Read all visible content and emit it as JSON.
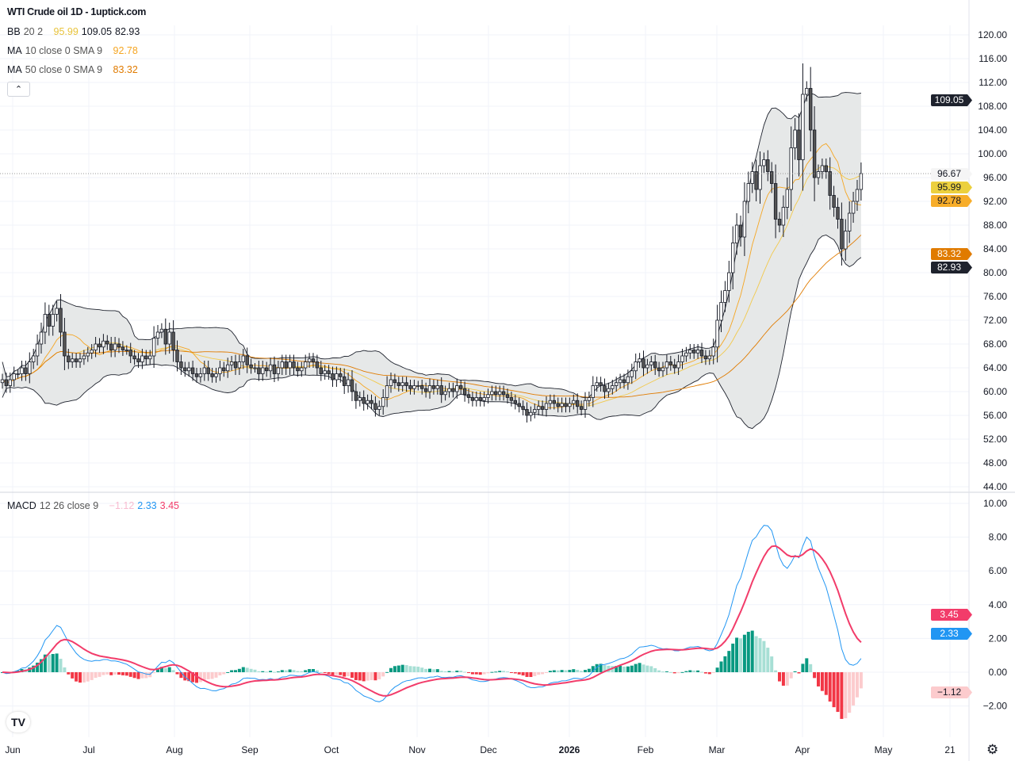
{
  "title": "WTI Crude oil  1D - 1uptick.com",
  "legend": {
    "bb": {
      "label": "BB",
      "params": "20 2",
      "basis": "95.99",
      "upper": "109.05",
      "lower": "82.93",
      "basis_color": "#e8c33a"
    },
    "ma10": {
      "label": "MA",
      "params": "10 close 0 SMA 9",
      "value": "92.78",
      "color": "#f5a623"
    },
    "ma50": {
      "label": "MA",
      "params": "50 close 0 SMA 9",
      "value": "83.32",
      "color": "#e07b00"
    },
    "macd": {
      "label": "MACD",
      "params": "12 26 close 9",
      "hist": "−1.12",
      "macd": "2.33",
      "signal": "3.45"
    }
  },
  "collapse_icon": "chevron-up-icon",
  "price_tags": {
    "upper": "109.05",
    "last": "96.67",
    "basis": "95.99",
    "ma10": "92.78",
    "ma50": "83.32",
    "lower": "82.93"
  },
  "macd_tags": {
    "signal": "3.45",
    "macd": "2.33",
    "hist": "−1.12"
  },
  "colors": {
    "up": "#ffffff",
    "down": "#555555",
    "bb_fill": "#e3e5e6",
    "ma10": "#f2c94c",
    "ma50": "#e07b00",
    "macd": "#2196f3",
    "signal": "#f23c6a",
    "hist_up_strong": "#089981",
    "hist_up_weak": "#a7dfd5",
    "hist_dn_strong": "#f23645",
    "hist_dn_weak": "#fccbcd"
  },
  "chart_data": [
    {
      "type": "candlestick",
      "title": "WTI Crude oil  1D - 1uptick.com",
      "ylim": [
        44,
        120
      ],
      "yticks": [
        "120.00",
        "116.00",
        "112.00",
        "108.00",
        "104.00",
        "100.00",
        "96.00",
        "92.00",
        "88.00",
        "84.00",
        "80.00",
        "76.00",
        "72.00",
        "68.00",
        "64.00",
        "60.00",
        "56.00",
        "52.00",
        "48.00",
        "44.00"
      ],
      "xticks": [
        "Jun",
        "Jul",
        "Aug",
        "Sep",
        "Oct",
        "Nov",
        "Dec",
        "2026",
        "Feb",
        "Mar",
        "Apr",
        "May",
        "21"
      ],
      "closes": [
        62,
        61,
        62,
        63,
        63,
        64,
        63,
        65,
        66,
        68,
        70,
        73,
        71,
        73,
        74,
        70,
        66,
        65,
        65.5,
        65,
        65.5,
        66,
        66.5,
        67,
        68,
        67.5,
        68.5,
        68,
        67,
        68,
        67.5,
        67,
        67,
        66,
        65.5,
        65,
        66,
        65.5,
        66,
        69,
        70,
        70.5,
        68,
        70,
        67,
        65,
        64,
        63.5,
        64,
        63,
        62.5,
        63,
        64,
        63,
        62.5,
        63,
        64,
        63.5,
        64.5,
        65,
        64,
        65,
        66,
        64.5,
        64,
        64,
        63,
        64,
        63.5,
        64.5,
        63,
        64,
        65,
        64,
        65,
        64,
        63.5,
        64,
        65,
        65.5,
        65,
        64,
        63,
        63.5,
        63,
        62,
        63,
        62.5,
        61,
        62,
        60,
        58.5,
        59,
        58,
        58.5,
        58,
        57,
        57.5,
        59,
        61,
        62,
        61.5,
        61,
        61.5,
        61,
        60.5,
        61,
        61,
        60.5,
        60,
        61,
        60.5,
        61,
        59.5,
        60,
        60.5,
        60,
        61,
        60.5,
        59.5,
        59,
        58.5,
        59,
        58.5,
        59,
        59.5,
        60,
        59.5,
        60,
        59.5,
        59,
        58.5,
        58,
        57.5,
        57,
        56,
        56.5,
        57,
        57.5,
        57,
        58,
        58.5,
        58,
        57.5,
        58,
        57.5,
        58,
        58.5,
        57.5,
        57,
        58.5,
        59,
        61,
        61.5,
        61,
        60,
        60.5,
        61,
        61.5,
        62,
        61.5,
        62.5,
        63.5,
        65,
        65.5,
        64,
        64.5,
        65,
        64,
        63.5,
        64,
        65,
        64.5,
        64,
        65,
        66,
        66.5,
        67,
        66.5,
        67,
        66,
        65.5,
        66,
        67.5,
        72,
        75,
        77,
        80,
        85,
        88,
        86,
        92,
        95,
        97,
        94,
        98,
        99,
        97,
        95,
        89,
        88,
        91,
        94,
        101,
        104,
        99,
        110,
        111,
        104,
        96,
        97,
        98,
        97,
        93,
        91,
        89,
        84,
        87,
        90,
        92,
        94,
        96.67
      ],
      "last": 96.67
    },
    {
      "type": "line",
      "title": "MACD 12 26 close 9",
      "ylim": [
        -3,
        10.5
      ],
      "yticks": [
        "10.00",
        "8.00",
        "6.00",
        "4.00",
        "2.00",
        "0.00",
        "−2.00"
      ],
      "latest": {
        "macd": 2.33,
        "signal": 3.45,
        "histogram": -1.12
      }
    }
  ]
}
